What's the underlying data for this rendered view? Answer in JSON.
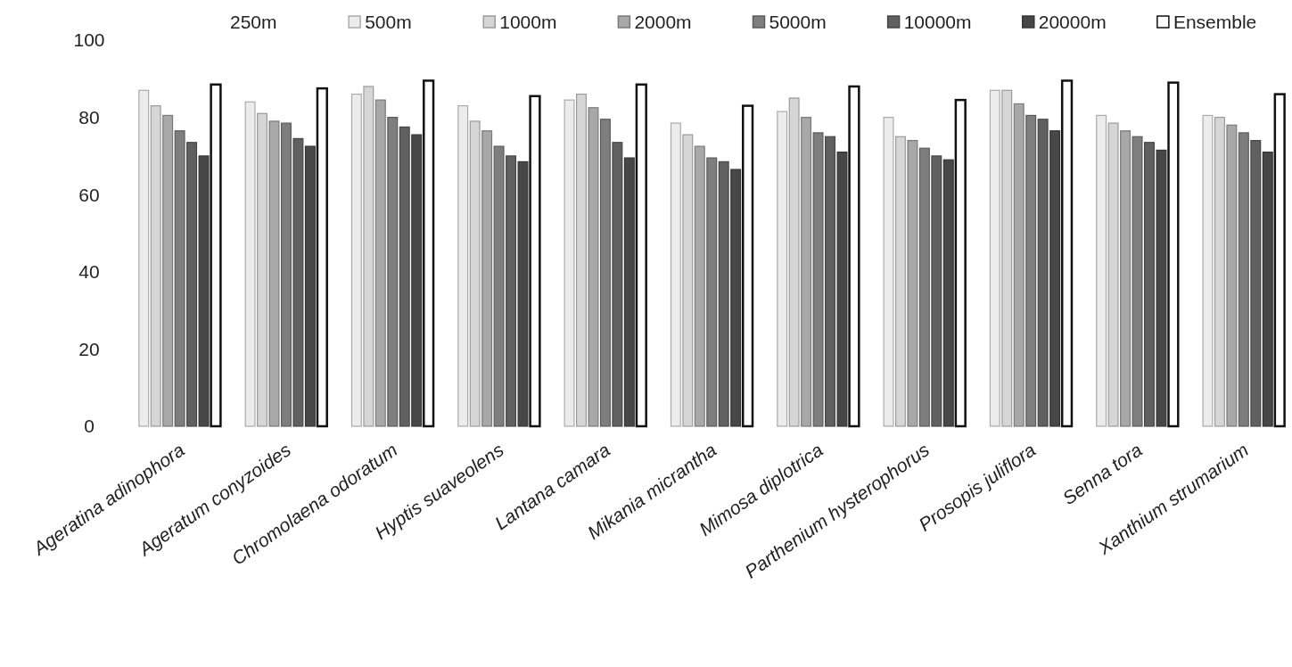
{
  "chart_data": {
    "type": "bar",
    "categories": [
      "Ageratina adinophora",
      "Ageratum conyzoides",
      "Chromolaena odoratum",
      "Hyptis suaveolens",
      "Lantana camara",
      "Mikania micrantha",
      "Mimosa diplotrica",
      "Parthenium hysterophorus",
      "Prosopis juliflora",
      "Senna tora",
      "Xanthium strumarium"
    ],
    "series": [
      {
        "name": "250m",
        "values": [
          null,
          null,
          null,
          null,
          null,
          null,
          null,
          null,
          null,
          null,
          null
        ]
      },
      {
        "name": "500m",
        "color": "#ececec",
        "values": [
          87,
          84,
          86,
          83,
          84.5,
          78.5,
          81.5,
          80,
          87,
          80.5,
          80.5
        ]
      },
      {
        "name": "1000m",
        "color": "#d6d6d6",
        "values": [
          83,
          81,
          88,
          79,
          86,
          75.5,
          85,
          75,
          87,
          78.5,
          80
        ]
      },
      {
        "name": "2000m",
        "color": "#a8a8a8",
        "values": [
          80.5,
          79,
          84.5,
          76.5,
          82.5,
          72.5,
          80,
          74,
          83.5,
          76.5,
          78
        ]
      },
      {
        "name": "5000m",
        "color": "#7e7e7e",
        "values": [
          76.5,
          78.5,
          80,
          72.5,
          79.5,
          69.5,
          76,
          72,
          80.5,
          75,
          76
        ]
      },
      {
        "name": "10000m",
        "color": "#606060",
        "values": [
          73.5,
          74.5,
          77.5,
          70,
          73.5,
          68.5,
          75,
          70,
          79.5,
          73.5,
          74
        ]
      },
      {
        "name": "20000m",
        "color": "#474747",
        "values": [
          70,
          72.5,
          75.5,
          68.5,
          69.5,
          66.5,
          71,
          69,
          76.5,
          71.5,
          71
        ]
      },
      {
        "name": "Ensemble",
        "color": "#ffffff",
        "values": [
          88.5,
          87.5,
          89.5,
          85.5,
          88.5,
          83,
          88,
          84.5,
          89.5,
          89,
          86
        ]
      }
    ],
    "ylim": [
      0,
      100
    ],
    "yticks": [
      0,
      20,
      40,
      60,
      80,
      100
    ],
    "grid": false,
    "legend": "top"
  }
}
